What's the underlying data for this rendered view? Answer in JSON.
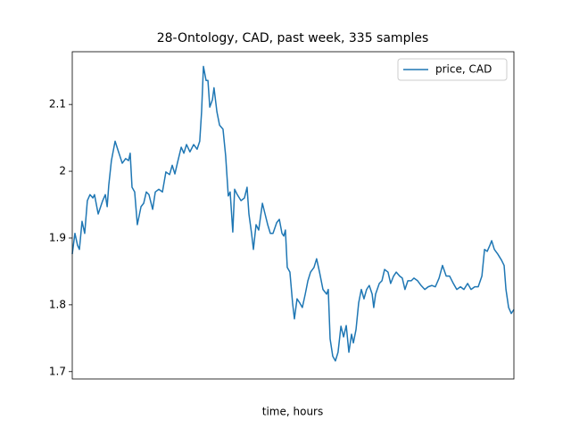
{
  "chart_data": {
    "type": "line",
    "title": "28-Ontology, CAD, past week, 335 samples",
    "x_label": "time, hours",
    "legend_position": "upper right",
    "xlim": [
      0,
      167
    ],
    "ylim": [
      1.689,
      2.179
    ],
    "yticks": [
      1.7,
      1.8,
      1.9,
      2.0,
      2.1
    ],
    "x": [
      0,
      1.0,
      2.0,
      2.7,
      3.7,
      4.7,
      5.7,
      6.7,
      7.8,
      8.4,
      9.8,
      11.5,
      12.5,
      13.2,
      13.8,
      14.8,
      16.2,
      17.5,
      18.9,
      20.2,
      21.3,
      21.9,
      22.6,
      23.6,
      24.6,
      26.0,
      27.0,
      28.0,
      29.0,
      30.4,
      31.4,
      32.7,
      34.1,
      35.4,
      36.8,
      37.8,
      38.8,
      39.8,
      41.2,
      42.2,
      43.2,
      44.5,
      45.9,
      47.2,
      48.2,
      48.9,
      49.6,
      50.6,
      51.3,
      52.0,
      53.0,
      53.6,
      54.7,
      55.7,
      57.0,
      58.0,
      59.0,
      59.7,
      60.7,
      61.4,
      62.4,
      63.8,
      65.1,
      66.1,
      66.8,
      67.8,
      68.5,
      69.5,
      70.5,
      71.9,
      72.9,
      73.9,
      74.9,
      75.9,
      77.3,
      78.3,
      79.3,
      80.0,
      80.6,
      81.3,
      82.3,
      83.3,
      84.0,
      85.0,
      86.0,
      87.0,
      88.1,
      89.1,
      90.1,
      91.4,
      92.4,
      93.5,
      94.8,
      96.2,
      96.8,
      97.5,
      98.5,
      99.5,
      100.5,
      101.6,
      102.6,
      103.6,
      104.6,
      105.6,
      106.3,
      107.3,
      108.3,
      109.3,
      110.3,
      111.3,
      112.3,
      113.4,
      114.0,
      114.7,
      116.1,
      117.1,
      118.1,
      119.4,
      120.4,
      121.5,
      122.5,
      123.8,
      124.8,
      125.8,
      126.9,
      128.2,
      129.2,
      130.6,
      131.9,
      133.3,
      134.6,
      136.0,
      137.3,
      138.7,
      140.0,
      141.4,
      142.7,
      144.1,
      145.4,
      146.8,
      148.1,
      149.5,
      150.8,
      152.2,
      153.5,
      154.9,
      155.9,
      156.9,
      157.9,
      158.6,
      159.6,
      160.9,
      162.3,
      163.3,
      164.0,
      165.0,
      166.0,
      167.0
    ],
    "series": [
      {
        "name": "price, CAD",
        "color": "#1f77b4",
        "values": [
          1.876,
          1.907,
          1.889,
          1.883,
          1.925,
          1.907,
          1.956,
          1.965,
          1.96,
          1.965,
          1.936,
          1.956,
          1.965,
          1.947,
          1.979,
          2.016,
          2.045,
          2.029,
          2.012,
          2.019,
          2.016,
          2.027,
          1.976,
          1.969,
          1.92,
          1.947,
          1.952,
          1.969,
          1.965,
          1.943,
          1.969,
          1.973,
          1.969,
          1.999,
          1.995,
          2.009,
          1.996,
          2.013,
          2.036,
          2.027,
          2.04,
          2.029,
          2.04,
          2.033,
          2.045,
          2.089,
          2.157,
          2.136,
          2.136,
          2.096,
          2.107,
          2.125,
          2.089,
          2.069,
          2.063,
          2.023,
          1.963,
          1.969,
          1.909,
          1.973,
          1.965,
          1.956,
          1.96,
          1.976,
          1.936,
          1.907,
          1.883,
          1.92,
          1.912,
          1.952,
          1.936,
          1.92,
          1.907,
          1.907,
          1.923,
          1.928,
          1.907,
          1.903,
          1.912,
          1.856,
          1.849,
          1.803,
          1.779,
          1.809,
          1.803,
          1.796,
          1.816,
          1.836,
          1.849,
          1.856,
          1.869,
          1.849,
          1.823,
          1.816,
          1.823,
          1.749,
          1.723,
          1.716,
          1.729,
          1.768,
          1.752,
          1.769,
          1.729,
          1.756,
          1.743,
          1.763,
          1.803,
          1.823,
          1.809,
          1.823,
          1.829,
          1.816,
          1.796,
          1.816,
          1.832,
          1.836,
          1.853,
          1.849,
          1.832,
          1.843,
          1.849,
          1.843,
          1.84,
          1.823,
          1.836,
          1.836,
          1.84,
          1.836,
          1.829,
          1.823,
          1.827,
          1.829,
          1.827,
          1.84,
          1.859,
          1.843,
          1.843,
          1.832,
          1.823,
          1.827,
          1.823,
          1.832,
          1.823,
          1.827,
          1.827,
          1.843,
          1.883,
          1.88,
          1.889,
          1.896,
          1.883,
          1.876,
          1.867,
          1.859,
          1.823,
          1.796,
          1.787,
          1.793
        ]
      }
    ]
  }
}
